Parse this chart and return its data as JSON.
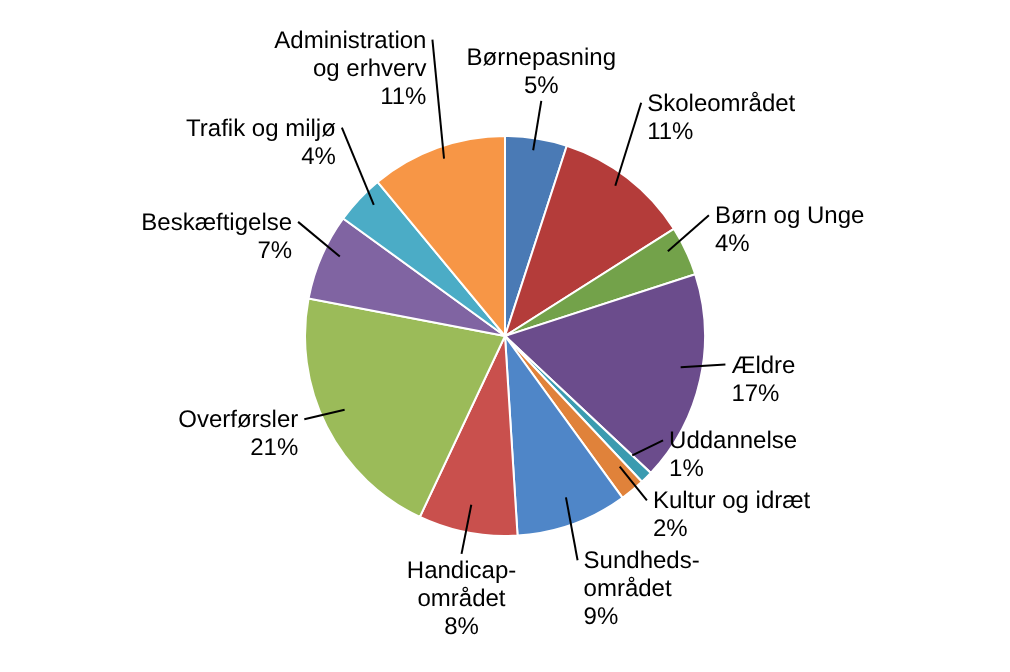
{
  "chart_data": {
    "type": "pie",
    "categories": [
      "Børnepasning",
      "Skoleområdet",
      "Børn og Unge",
      "Ældre",
      "Uddannelse",
      "Kultur og idræt",
      "Sundheds-\nområdet",
      "Handicap-\nområdet",
      "Overførsler",
      "Beskæftigelse",
      "Trafik og miljø",
      "Administration\nog erhverv"
    ],
    "values": [
      5,
      11,
      4,
      17,
      1,
      2,
      9,
      8,
      21,
      7,
      4,
      11
    ],
    "value_labels": [
      "5%",
      "11%",
      "4%",
      "17%",
      "1%",
      "2%",
      "9%",
      "8%",
      "21%",
      "7%",
      "4%",
      "11%"
    ],
    "colors": [
      "#4a7ab5",
      "#b43c3a",
      "#73a24a",
      "#6b4c8c",
      "#3a9bb0",
      "#e0823a",
      "#4f86c8",
      "#c9504d",
      "#9bbb59",
      "#8064a2",
      "#4bacc6",
      "#f79646"
    ],
    "legend": false
  }
}
